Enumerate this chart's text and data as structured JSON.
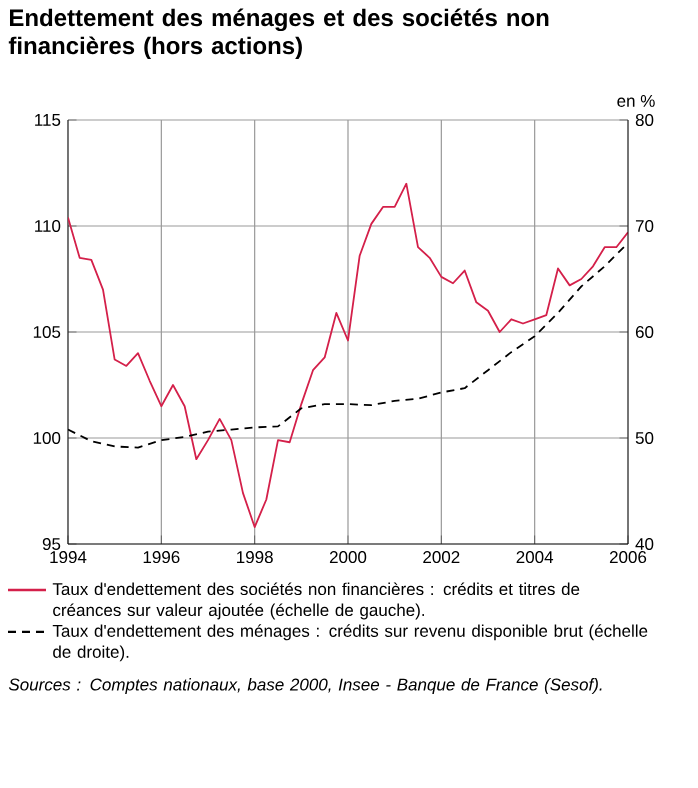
{
  "chart_data": {
    "type": "line",
    "title": "Endettement des ménages et des sociétés non financières (hors actions)",
    "y2label": "en %",
    "xlim": [
      1994,
      2006
    ],
    "xticks": [
      1994,
      1996,
      1998,
      2000,
      2002,
      2004,
      2006
    ],
    "ylim": [
      95,
      115
    ],
    "yticks": [
      95,
      100,
      105,
      110,
      115
    ],
    "y2lim": [
      40,
      80
    ],
    "y2ticks": [
      40,
      50,
      60,
      70,
      80
    ],
    "grid": true,
    "legend": "bottom",
    "series": [
      {
        "name": "Taux d'endettement des sociétés non financières : crédits et titres de créances sur valeur ajoutée (échelle de gauche).",
        "color": "#d4204a",
        "line_style": "solid",
        "axis": "y",
        "x": [
          1994,
          1994.25,
          1994.5,
          1994.75,
          1995,
          1995.25,
          1995.5,
          1995.75,
          1996,
          1996.25,
          1996.5,
          1996.75,
          1997,
          1997.25,
          1997.5,
          1997.75,
          1998,
          1998.25,
          1998.5,
          1998.75,
          1999,
          1999.25,
          1999.5,
          1999.75,
          2000,
          2000.25,
          2000.5,
          2000.75,
          2001,
          2001.25,
          2001.5,
          2001.75,
          2002,
          2002.25,
          2002.5,
          2002.75,
          2003,
          2003.25,
          2003.5,
          2003.75,
          2004,
          2004.25,
          2004.5,
          2004.75,
          2005,
          2005.25,
          2005.5,
          2005.75,
          2006
        ],
        "values": [
          110.4,
          108.5,
          108.4,
          107.0,
          103.7,
          103.4,
          104.0,
          102.7,
          101.5,
          102.5,
          101.5,
          99.0,
          99.9,
          100.9,
          99.9,
          97.4,
          95.8,
          97.1,
          99.9,
          99.8,
          101.6,
          103.2,
          103.8,
          105.9,
          104.6,
          108.6,
          110.1,
          110.9,
          110.9,
          112.0,
          109.0,
          108.5,
          107.6,
          107.3,
          107.9,
          106.4,
          106.0,
          105.0,
          105.6,
          105.4,
          105.6,
          105.8,
          108.0,
          107.2,
          107.5,
          108.1,
          109.0,
          109.0,
          109.7
        ]
      },
      {
        "name": "Taux d'endettement des ménages : crédits sur revenu disponible brut (échelle de droite).",
        "color": "#000000",
        "line_style": "dashed",
        "axis": "y2",
        "x": [
          1994,
          1994.5,
          1995,
          1995.5,
          1996,
          1996.5,
          1997,
          1997.5,
          1998,
          1998.5,
          1999,
          1999.5,
          2000,
          2000.5,
          2001,
          2001.5,
          2002,
          2002.5,
          2003,
          2003.5,
          2004,
          2004.5,
          2005,
          2005.5,
          2006
        ],
        "values": [
          50.8,
          49.7,
          49.2,
          49.1,
          49.8,
          50.1,
          50.6,
          50.8,
          51.0,
          51.1,
          52.8,
          53.2,
          53.2,
          53.1,
          53.5,
          53.7,
          54.3,
          54.7,
          56.4,
          58.1,
          59.6,
          61.8,
          64.3,
          66.2,
          68.4
        ]
      }
    ],
    "annotations": [
      "Sources : Comptes nationaux, base 2000, Insee - Banque de France (Sesof)."
    ]
  }
}
